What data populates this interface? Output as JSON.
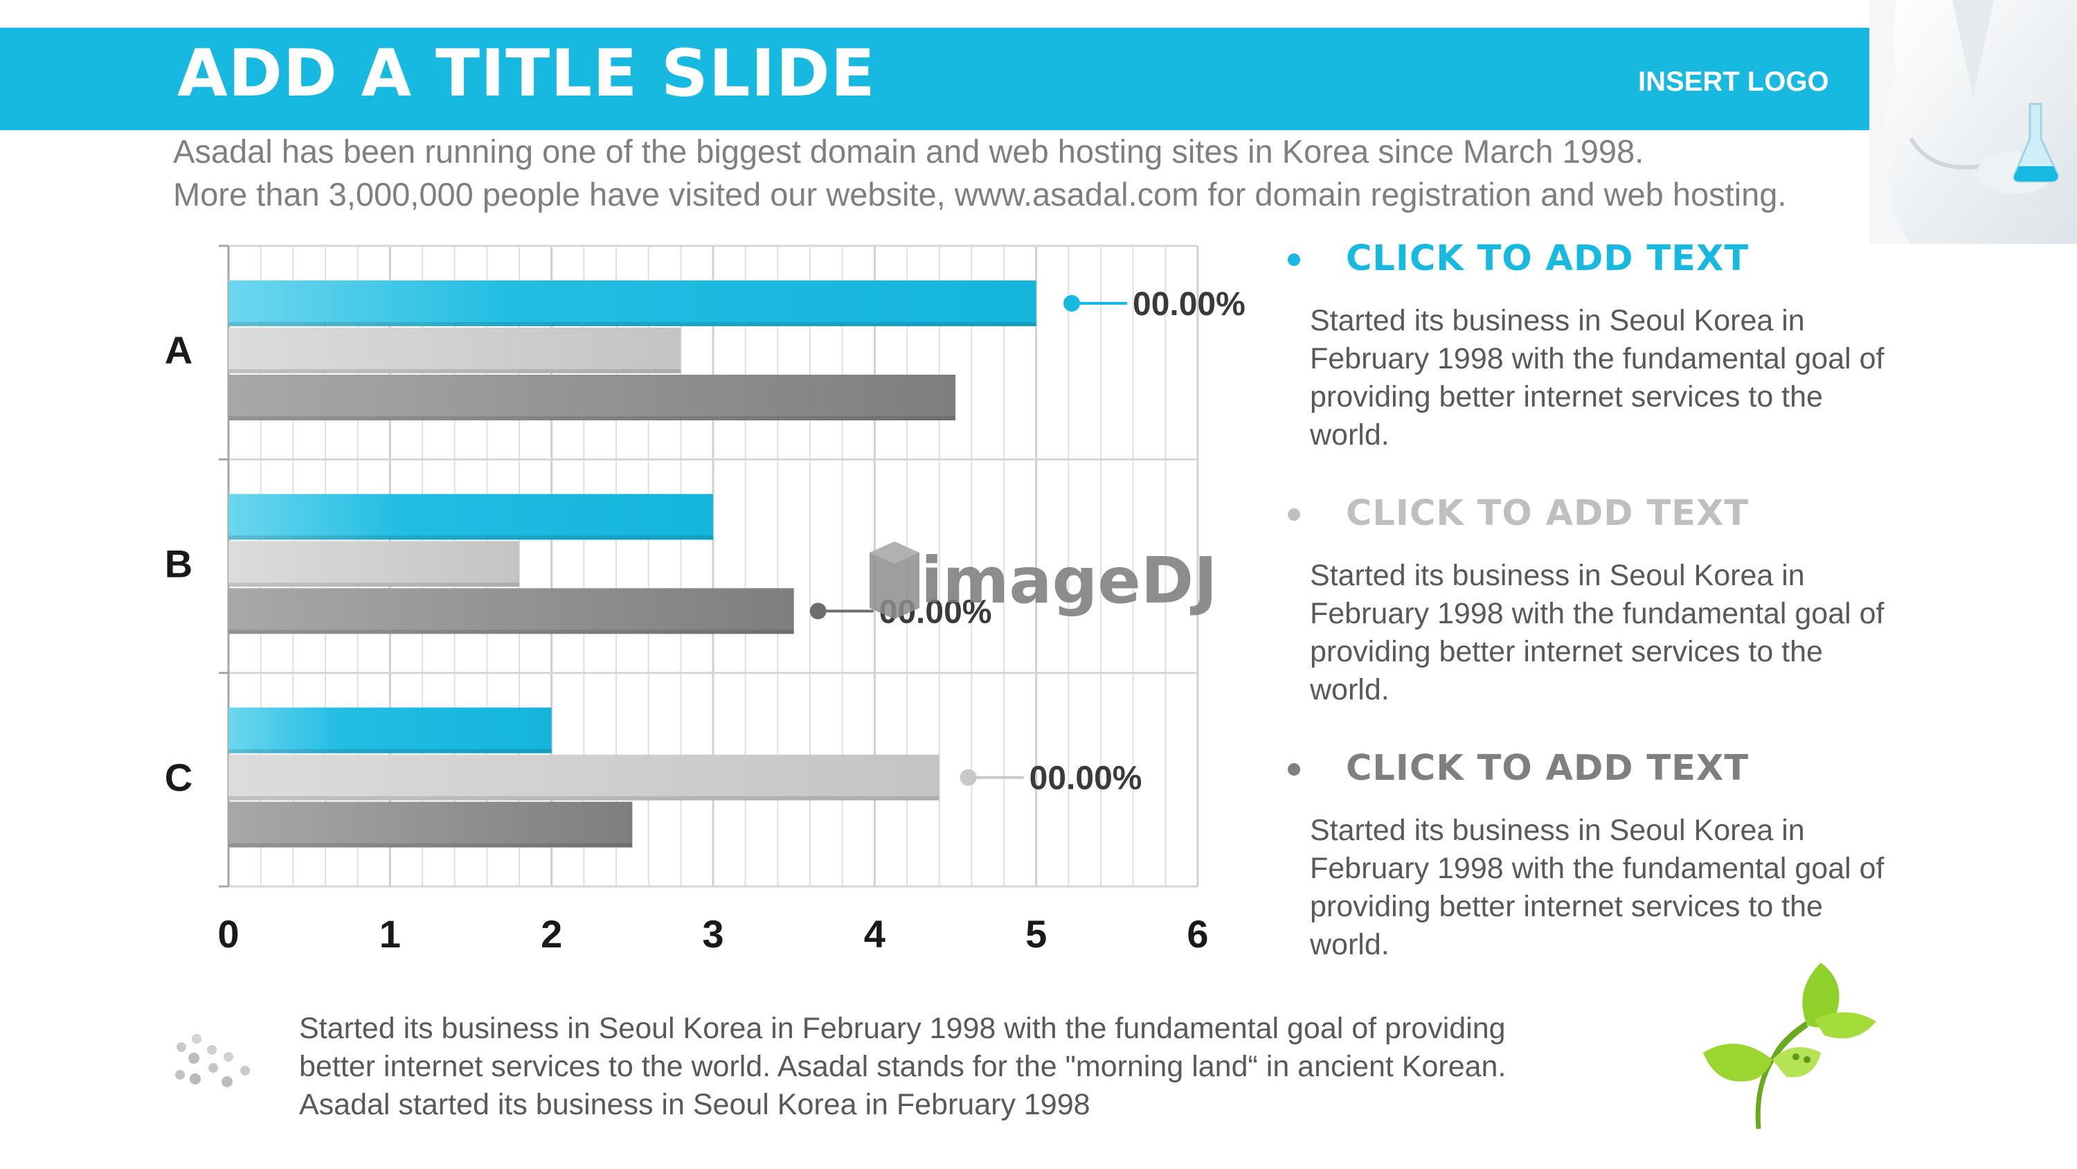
{
  "slide": {
    "title": "ADD A TITLE SLIDE",
    "logo": "INSERT LOGO",
    "subtitle_lines": [
      "Asadal has been running one of the biggest domain and web hosting sites in Korea since March 1998.",
      "More than 3,000,000 people have visited our website,  www.asadal.com for domain registration and web hosting."
    ]
  },
  "chart_data": {
    "type": "bar",
    "orientation": "horizontal",
    "categories": [
      "A",
      "B",
      "C"
    ],
    "series": [
      {
        "values": [
          5,
          3,
          2
        ],
        "color": "#17b9e0"
      },
      {
        "values": [
          2.8,
          1.8,
          4.4
        ],
        "color": "#c8c8c8"
      },
      {
        "values": [
          4.5,
          3.5,
          2.5
        ],
        "color": "#8c8c8c"
      }
    ],
    "xlim": [
      0,
      6
    ],
    "x_ticks": [
      "0",
      "1",
      "2",
      "3",
      "4",
      "5",
      "6"
    ],
    "grid": true,
    "callouts": [
      {
        "label": "00.00%",
        "category": "A",
        "series": 0,
        "value": 5.22,
        "color": "#17b9e0"
      },
      {
        "label": "00.00%",
        "category": "B",
        "series": 2,
        "value": 3.65,
        "color": "#6e6e6e"
      },
      {
        "label": "00.00%",
        "category": "C",
        "series": 1,
        "value": 4.58,
        "color": "#c8c8c8"
      }
    ]
  },
  "bullets": [
    {
      "title": "CLICK TO ADD TEXT",
      "color": "#17b9e0",
      "body": "Started its business in Seoul Korea  in February 1998 with the fundamental goal of providing better internet services to the world."
    },
    {
      "title": "CLICK TO ADD TEXT",
      "color": "#bfbfbf",
      "body": "Started its business in Seoul Korea  in February 1998 with the fundamental goal of providing better internet services to the world."
    },
    {
      "title": "CLICK TO ADD TEXT",
      "color": "#7f7f7f",
      "body": "Started its business in Seoul Korea  in February 1998 with the fundamental goal of providing better internet services to the world."
    }
  ],
  "footer": {
    "lines": [
      "Started its business in Seoul Korea  in February 1998 with the fundamental goal of providing",
      "better internet services to the world. Asadal stands for the \"morning land“ in ancient Korean.",
      "Asadal started its business in Seoul Korea  in February 1998"
    ]
  },
  "watermark": "imageDJ",
  "colors": {
    "accent": "#17b9e0",
    "text_gray": "#595959",
    "light_gray": "#c8c8c8",
    "dark_gray": "#8c8c8c"
  },
  "icons": [
    "scientist-photo",
    "dots-icon",
    "sprout-icon",
    "imagedj-watermark"
  ]
}
